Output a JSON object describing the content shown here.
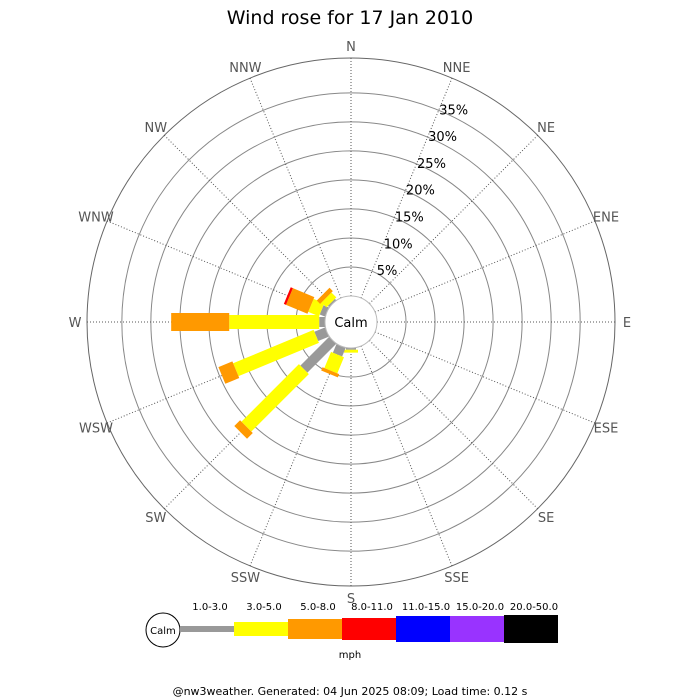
{
  "chart_data": {
    "type": "windrose",
    "title": "Wind rose for 17 Jan 2010",
    "directions": [
      "N",
      "NNE",
      "NE",
      "ENE",
      "E",
      "ESE",
      "SE",
      "SSE",
      "S",
      "SSW",
      "SW",
      "WSW",
      "W",
      "WNW",
      "NW",
      "NNW"
    ],
    "rings": [
      5,
      10,
      15,
      20,
      25,
      30,
      35
    ],
    "ring_labels": [
      "5%",
      "10%",
      "15%",
      "20%",
      "25%",
      "30%",
      "35%"
    ],
    "rmax": 41,
    "calm_label": "Calm",
    "unit": "mph",
    "bins": [
      {
        "label": "1.0-3.0",
        "color": "#999999"
      },
      {
        "label": "3.0-5.0",
        "color": "#ffff00"
      },
      {
        "label": "5.0-8.0",
        "color": "#ff9900"
      },
      {
        "label": "8.0-11.0",
        "color": "#ff0000"
      },
      {
        "label": "11.0-15.0",
        "color": "#0000ff"
      },
      {
        "label": "15.0-20.0",
        "color": "#9933ff"
      },
      {
        "label": "20.0-50.0",
        "color": "#000000"
      }
    ],
    "series": [
      {
        "direction": "S",
        "values": [
          0.3,
          0.5,
          0,
          0,
          0,
          0,
          0
        ]
      },
      {
        "direction": "SSW",
        "values": [
          1.6,
          3.0,
          0.6,
          0,
          0,
          0,
          0
        ]
      },
      {
        "direction": "SW",
        "values": [
          7.0,
          14.0,
          1.4,
          0,
          0,
          0,
          0
        ]
      },
      {
        "direction": "WSW",
        "values": [
          2.0,
          15.0,
          2.6,
          0,
          0,
          0,
          0
        ]
      },
      {
        "direction": "W",
        "values": [
          1.0,
          15.5,
          10.0,
          0,
          0,
          0,
          0
        ]
      },
      {
        "direction": "WNW",
        "values": [
          1.0,
          2.0,
          4.0,
          0.4,
          0,
          0,
          0
        ]
      },
      {
        "direction": "NW",
        "values": [
          0.3,
          1.2,
          0.8,
          0,
          0,
          0,
          0
        ]
      }
    ]
  },
  "footer": "@nw3weather. Generated: 04 Jun 2025 08:09; Load time: 0.12 s"
}
